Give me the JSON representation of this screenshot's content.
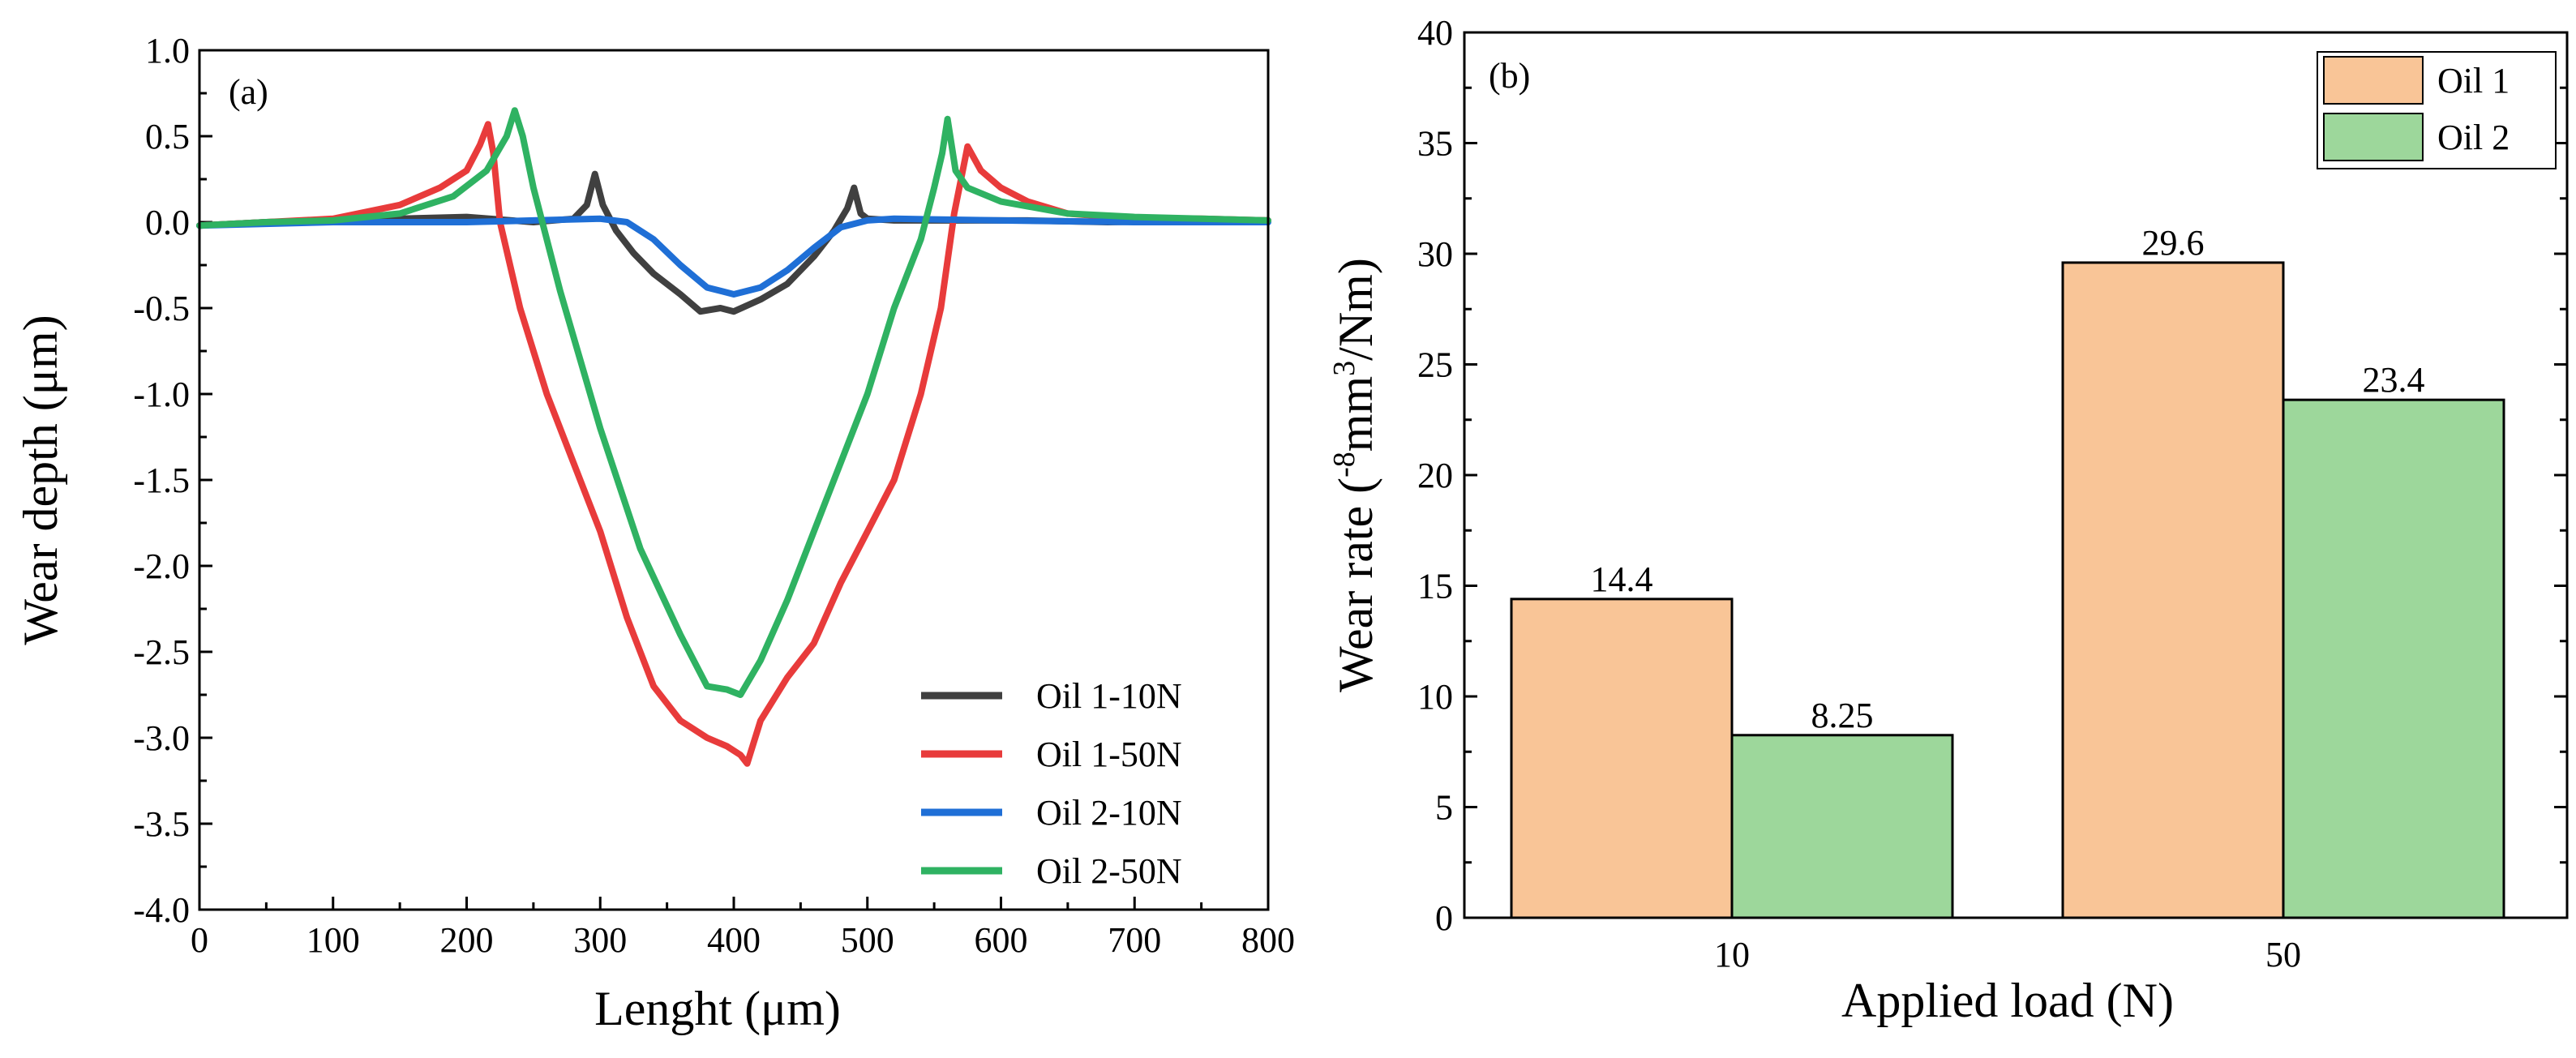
{
  "chart_data": [
    {
      "type": "line",
      "panel_label": "(a)",
      "xlabel": "Lenght (μm)",
      "ylabel": "Wear depth (μm)",
      "xlim": [
        0,
        800
      ],
      "ylim": [
        -4.0,
        1.0
      ],
      "xticks": [
        0,
        100,
        200,
        300,
        400,
        500,
        600,
        700,
        800
      ],
      "yticks": [
        1.0,
        0.5,
        0.0,
        -0.5,
        -1.0,
        -1.5,
        -2.0,
        -2.5,
        -3.0,
        -3.5,
        -4.0
      ],
      "ytick_labels": [
        "1.0",
        "0.5",
        "0.0",
        "-0.5",
        "-1.0",
        "-1.5",
        "-2.0",
        "-2.5",
        "-3.0",
        "-3.5",
        "-4.0"
      ],
      "legend_position": "bottom-right",
      "series": [
        {
          "name": "Oil 1-10N",
          "color": "#404040",
          "x": [
            0,
            50,
            100,
            150,
            200,
            250,
            280,
            290,
            296,
            302,
            312,
            325,
            340,
            360,
            375,
            390,
            400,
            420,
            440,
            460,
            475,
            485,
            490,
            495,
            500,
            520,
            560,
            620,
            680,
            740,
            800
          ],
          "y": [
            -0.02,
            0.0,
            0.01,
            0.02,
            0.03,
            0.0,
            0.02,
            0.1,
            0.28,
            0.1,
            -0.05,
            -0.18,
            -0.3,
            -0.42,
            -0.52,
            -0.5,
            -0.52,
            -0.45,
            -0.36,
            -0.2,
            -0.05,
            0.08,
            0.2,
            0.05,
            0.02,
            0.01,
            0.01,
            0.01,
            0.0,
            0.01,
            0.01
          ]
        },
        {
          "name": "Oil 1-50N",
          "color": "#e83b3b",
          "x": [
            0,
            50,
            100,
            150,
            180,
            200,
            210,
            216,
            220,
            225,
            240,
            260,
            280,
            300,
            320,
            340,
            360,
            380,
            395,
            405,
            410,
            420,
            440,
            460,
            480,
            500,
            520,
            540,
            555,
            565,
            575,
            585,
            600,
            620,
            650,
            700,
            750,
            800
          ],
          "y": [
            -0.02,
            0.0,
            0.02,
            0.1,
            0.2,
            0.3,
            0.45,
            0.57,
            0.4,
            0.0,
            -0.5,
            -1.0,
            -1.4,
            -1.8,
            -2.3,
            -2.7,
            -2.9,
            -3.0,
            -3.05,
            -3.1,
            -3.15,
            -2.9,
            -2.65,
            -2.45,
            -2.1,
            -1.8,
            -1.5,
            -1.0,
            -0.5,
            0.05,
            0.44,
            0.3,
            0.2,
            0.12,
            0.05,
            0.02,
            0.02,
            0.01
          ]
        },
        {
          "name": "Oil 2-10N",
          "color": "#1f6fd6",
          "x": [
            0,
            100,
            200,
            250,
            300,
            320,
            340,
            360,
            380,
            400,
            420,
            440,
            460,
            480,
            500,
            520,
            600,
            700,
            800
          ],
          "y": [
            -0.02,
            0.0,
            0.0,
            0.01,
            0.02,
            0.0,
            -0.1,
            -0.25,
            -0.38,
            -0.42,
            -0.38,
            -0.28,
            -0.15,
            -0.03,
            0.01,
            0.02,
            0.01,
            0.0,
            0.0
          ]
        },
        {
          "name": "Oil 2-50N",
          "color": "#2fb262",
          "x": [
            0,
            50,
            100,
            150,
            190,
            215,
            230,
            236,
            242,
            250,
            270,
            300,
            330,
            360,
            380,
            395,
            405,
            420,
            440,
            460,
            480,
            500,
            520,
            540,
            550,
            556,
            560,
            566,
            575,
            600,
            650,
            700,
            750,
            800
          ],
          "y": [
            -0.02,
            0.0,
            0.01,
            0.05,
            0.15,
            0.3,
            0.5,
            0.65,
            0.5,
            0.2,
            -0.4,
            -1.2,
            -1.9,
            -2.4,
            -2.7,
            -2.72,
            -2.75,
            -2.55,
            -2.2,
            -1.8,
            -1.4,
            -1.0,
            -0.5,
            -0.1,
            0.2,
            0.4,
            0.6,
            0.3,
            0.2,
            0.12,
            0.05,
            0.03,
            0.02,
            0.01
          ]
        }
      ]
    },
    {
      "type": "bar",
      "panel_label": "(b)",
      "xlabel": "Applied load (N)",
      "ylabel_pre": "Wear rate (",
      "ylabel_sup1": "-8",
      "ylabel_mid": "mm",
      "ylabel_sup2": "3",
      "ylabel_post": "/Nm)",
      "ylim": [
        0,
        40
      ],
      "yticks": [
        0,
        5,
        10,
        15,
        20,
        25,
        30,
        35,
        40
      ],
      "categories": [
        "10",
        "50"
      ],
      "legend_position": "top-right",
      "series": [
        {
          "name": "Oil 1",
          "color": "#f9c597",
          "values": [
            14.4,
            29.6
          ],
          "labels": [
            "14.4",
            "29.6"
          ]
        },
        {
          "name": "Oil 2",
          "color": "#9dd79b",
          "values": [
            8.25,
            23.4
          ],
          "labels": [
            "8.25",
            "23.4"
          ]
        }
      ]
    }
  ]
}
